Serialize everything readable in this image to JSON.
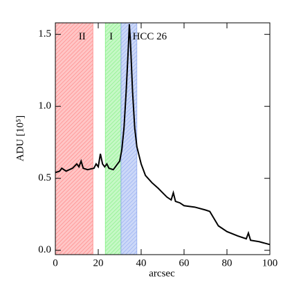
{
  "chart_data": {
    "type": "line",
    "x_label": "arcsec",
    "y_label": "ADU [10⁵]",
    "xlim": [
      0,
      100
    ],
    "ylim": [
      -0.03,
      1.58
    ],
    "xticks": [
      0,
      20,
      40,
      60,
      80,
      100
    ],
    "yticks": [
      {
        "value": 0,
        "label": "0.0"
      },
      0.5,
      {
        "value": 1,
        "label": "1.0"
      },
      1.5
    ],
    "regions": [
      {
        "label": "II",
        "range": [
          0,
          17.5
        ],
        "color": "#ff8080",
        "label_x": 12.5
      },
      {
        "label": "I",
        "range": [
          23.3,
          30.6
        ],
        "color": "#80f080",
        "label_x": 26
      },
      {
        "label": "HCC 26",
        "range": [
          30.6,
          38
        ],
        "color": "#8fa8f0",
        "label_x": 36
      }
    ],
    "label_y": 1.48,
    "series": [
      {
        "color": "#000000",
        "x": [
          0,
          2,
          3,
          5,
          8,
          10,
          11,
          12,
          13,
          15,
          18,
          19,
          20,
          21,
          22,
          23,
          24,
          25,
          27,
          28,
          30,
          31,
          32,
          33,
          34,
          34.5,
          35,
          36,
          37,
          38,
          39,
          40,
          42,
          45,
          48,
          50,
          52,
          54,
          55,
          56,
          58,
          60,
          65,
          70,
          72,
          74,
          76,
          80,
          85,
          89,
          90,
          91,
          95,
          100
        ],
        "values": [
          0.54,
          0.55,
          0.57,
          0.55,
          0.57,
          0.6,
          0.58,
          0.62,
          0.57,
          0.56,
          0.57,
          0.6,
          0.58,
          0.67,
          0.6,
          0.58,
          0.6,
          0.57,
          0.56,
          0.58,
          0.62,
          0.7,
          0.85,
          1.1,
          1.4,
          1.57,
          1.45,
          1.1,
          0.85,
          0.72,
          0.66,
          0.6,
          0.52,
          0.47,
          0.43,
          0.4,
          0.37,
          0.35,
          0.4,
          0.34,
          0.33,
          0.31,
          0.3,
          0.28,
          0.27,
          0.22,
          0.17,
          0.13,
          0.1,
          0.08,
          0.12,
          0.07,
          0.06,
          0.04
        ]
      }
    ]
  }
}
